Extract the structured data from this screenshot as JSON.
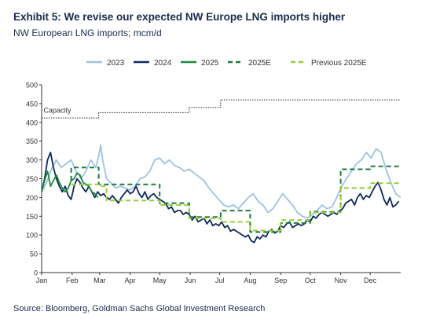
{
  "header": {
    "title": "Exhibit 5: We revise our expected NW Europe LNG imports higher",
    "subtitle": "NW European LNG imports; mcm/d"
  },
  "footer": {
    "source": "Source: Bloomberg, Goldman Sachs Global Investment Research"
  },
  "chart_data": {
    "type": "line",
    "ylim": [
      0,
      500
    ],
    "yticks": [
      0,
      50,
      100,
      150,
      200,
      250,
      300,
      350,
      400,
      450,
      500
    ],
    "xlim": [
      0,
      365
    ],
    "months": [
      "Jan",
      "Feb",
      "Mar",
      "Apr",
      "May",
      "Jun",
      "Jul",
      "Aug",
      "Sep",
      "Oct",
      "Nov",
      "Dec"
    ],
    "month_starts": [
      0,
      31,
      59,
      90,
      120,
      151,
      181,
      212,
      243,
      273,
      304,
      334
    ],
    "grid": false,
    "legend_position": "top",
    "annotations": [
      {
        "text": "Capacity"
      }
    ],
    "capacity": {
      "label": "Capacity",
      "color": "#222222",
      "points": [
        [
          0,
          412
        ],
        [
          58,
          412
        ],
        [
          58,
          426
        ],
        [
          150,
          426
        ],
        [
          150,
          440
        ],
        [
          182,
          440
        ],
        [
          182,
          460
        ],
        [
          365,
          460
        ]
      ]
    },
    "series": [
      {
        "name": "2023",
        "color": "#9cc3e6",
        "style": "solid",
        "points": [
          [
            0,
            215
          ],
          [
            5,
            240
          ],
          [
            10,
            275
          ],
          [
            15,
            300
          ],
          [
            20,
            280
          ],
          [
            25,
            290
          ],
          [
            30,
            300
          ],
          [
            35,
            270
          ],
          [
            40,
            250
          ],
          [
            45,
            270
          ],
          [
            50,
            300
          ],
          [
            55,
            280
          ],
          [
            58,
            310
          ],
          [
            60,
            340
          ],
          [
            62,
            300
          ],
          [
            66,
            250
          ],
          [
            70,
            240
          ],
          [
            75,
            225
          ],
          [
            80,
            230
          ],
          [
            85,
            225
          ],
          [
            90,
            220
          ],
          [
            95,
            230
          ],
          [
            100,
            250
          ],
          [
            105,
            255
          ],
          [
            110,
            270
          ],
          [
            115,
            300
          ],
          [
            120,
            305
          ],
          [
            125,
            290
          ],
          [
            130,
            300
          ],
          [
            135,
            285
          ],
          [
            140,
            280
          ],
          [
            145,
            270
          ],
          [
            150,
            275
          ],
          [
            155,
            265
          ],
          [
            160,
            255
          ],
          [
            165,
            245
          ],
          [
            170,
            225
          ],
          [
            175,
            210
          ],
          [
            180,
            195
          ],
          [
            185,
            180
          ],
          [
            190,
            175
          ],
          [
            195,
            180
          ],
          [
            200,
            170
          ],
          [
            205,
            185
          ],
          [
            210,
            200
          ],
          [
            215,
            210
          ],
          [
            220,
            190
          ],
          [
            225,
            180
          ],
          [
            230,
            160
          ],
          [
            235,
            170
          ],
          [
            240,
            190
          ],
          [
            245,
            210
          ],
          [
            250,
            195
          ],
          [
            255,
            180
          ],
          [
            260,
            160
          ],
          [
            265,
            150
          ],
          [
            270,
            145
          ],
          [
            275,
            155
          ],
          [
            280,
            165
          ],
          [
            285,
            180
          ],
          [
            290,
            170
          ],
          [
            295,
            175
          ],
          [
            300,
            200
          ],
          [
            305,
            230
          ],
          [
            310,
            250
          ],
          [
            315,
            270
          ],
          [
            320,
            290
          ],
          [
            325,
            300
          ],
          [
            330,
            320
          ],
          [
            335,
            305
          ],
          [
            340,
            330
          ],
          [
            345,
            320
          ],
          [
            350,
            275
          ],
          [
            355,
            240
          ],
          [
            360,
            210
          ],
          [
            365,
            200
          ]
        ]
      },
      {
        "name": "2024",
        "color": "#0c2a5b",
        "style": "solid",
        "points": [
          [
            0,
            215
          ],
          [
            3,
            250
          ],
          [
            6,
            300
          ],
          [
            9,
            320
          ],
          [
            12,
            280
          ],
          [
            15,
            250
          ],
          [
            18,
            230
          ],
          [
            21,
            215
          ],
          [
            24,
            230
          ],
          [
            27,
            205
          ],
          [
            30,
            195
          ],
          [
            33,
            230
          ],
          [
            36,
            250
          ],
          [
            39,
            240
          ],
          [
            42,
            225
          ],
          [
            45,
            215
          ],
          [
            48,
            230
          ],
          [
            51,
            215
          ],
          [
            54,
            200
          ],
          [
            57,
            215
          ],
          [
            60,
            205
          ],
          [
            63,
            210
          ],
          [
            66,
            200
          ],
          [
            69,
            195
          ],
          [
            72,
            205
          ],
          [
            75,
            195
          ],
          [
            78,
            185
          ],
          [
            81,
            200
          ],
          [
            84,
            210
          ],
          [
            87,
            220
          ],
          [
            90,
            210
          ],
          [
            93,
            215
          ],
          [
            96,
            230
          ],
          [
            99,
            210
          ],
          [
            102,
            200
          ],
          [
            105,
            215
          ],
          [
            108,
            195
          ],
          [
            111,
            205
          ],
          [
            114,
            210
          ],
          [
            117,
            200
          ],
          [
            120,
            195
          ],
          [
            123,
            190
          ],
          [
            126,
            185
          ],
          [
            129,
            170
          ],
          [
            132,
            175
          ],
          [
            135,
            160
          ],
          [
            138,
            165
          ],
          [
            141,
            165
          ],
          [
            144,
            155
          ],
          [
            147,
            160
          ],
          [
            150,
            155
          ],
          [
            153,
            140
          ],
          [
            156,
            150
          ],
          [
            159,
            135
          ],
          [
            162,
            140
          ],
          [
            165,
            145
          ],
          [
            168,
            130
          ],
          [
            171,
            140
          ],
          [
            174,
            125
          ],
          [
            177,
            130
          ],
          [
            180,
            125
          ],
          [
            183,
            135
          ],
          [
            186,
            120
          ],
          [
            189,
            125
          ],
          [
            192,
            110
          ],
          [
            195,
            115
          ],
          [
            198,
            110
          ],
          [
            201,
            105
          ],
          [
            204,
            100
          ],
          [
            207,
            95
          ],
          [
            210,
            100
          ],
          [
            213,
            85
          ],
          [
            216,
            80
          ],
          [
            219,
            95
          ],
          [
            222,
            90
          ],
          [
            225,
            100
          ],
          [
            228,
            95
          ],
          [
            231,
            110
          ],
          [
            234,
            115
          ],
          [
            237,
            105
          ],
          [
            240,
            110
          ],
          [
            243,
            125
          ],
          [
            246,
            120
          ],
          [
            249,
            130
          ],
          [
            252,
            135
          ],
          [
            255,
            120
          ],
          [
            258,
            125
          ],
          [
            261,
            130
          ],
          [
            264,
            125
          ],
          [
            267,
            130
          ],
          [
            270,
            140
          ],
          [
            273,
            135
          ],
          [
            276,
            150
          ],
          [
            279,
            145
          ],
          [
            282,
            155
          ],
          [
            285,
            160
          ],
          [
            288,
            155
          ],
          [
            291,
            150
          ],
          [
            294,
            155
          ],
          [
            297,
            160
          ],
          [
            300,
            155
          ],
          [
            303,
            165
          ],
          [
            306,
            170
          ],
          [
            309,
            185
          ],
          [
            312,
            190
          ],
          [
            315,
            195
          ],
          [
            318,
            180
          ],
          [
            321,
            200
          ],
          [
            324,
            210
          ],
          [
            327,
            195
          ],
          [
            330,
            205
          ],
          [
            333,
            200
          ],
          [
            336,
            215
          ],
          [
            339,
            230
          ],
          [
            342,
            240
          ],
          [
            345,
            220
          ],
          [
            348,
            195
          ],
          [
            351,
            180
          ],
          [
            354,
            200
          ],
          [
            357,
            175
          ],
          [
            360,
            180
          ],
          [
            363,
            190
          ]
        ]
      },
      {
        "name": "2025",
        "color": "#1b8a3c",
        "style": "solid",
        "points": [
          [
            0,
            215
          ],
          [
            3,
            245
          ],
          [
            6,
            270
          ],
          [
            9,
            230
          ],
          [
            12,
            245
          ],
          [
            15,
            260
          ],
          [
            18,
            240
          ],
          [
            21,
            225
          ],
          [
            24,
            215
          ],
          [
            27,
            225
          ],
          [
            30,
            245
          ],
          [
            33,
            250
          ],
          [
            36,
            265
          ],
          [
            39,
            260
          ],
          [
            42,
            240
          ],
          [
            45,
            235
          ],
          [
            48,
            230
          ],
          [
            51,
            215
          ],
          [
            54,
            210
          ],
          [
            57,
            200
          ]
        ]
      },
      {
        "name": "2025E",
        "color": "#1e7a3a",
        "style": "dashed",
        "points": [
          [
            30,
            245
          ],
          [
            30,
            280
          ],
          [
            58,
            280
          ],
          [
            58,
            235
          ],
          [
            120,
            235
          ],
          [
            120,
            185
          ],
          [
            150,
            185
          ],
          [
            150,
            148
          ],
          [
            182,
            148
          ],
          [
            182,
            165
          ],
          [
            212,
            165
          ],
          [
            212,
            108
          ],
          [
            243,
            108
          ],
          [
            243,
            132
          ],
          [
            273,
            132
          ],
          [
            273,
            162
          ],
          [
            304,
            162
          ],
          [
            304,
            275
          ],
          [
            334,
            275
          ],
          [
            334,
            283
          ],
          [
            365,
            283
          ]
        ]
      },
      {
        "name": "Previous 2025E",
        "color": "#9ccc3c",
        "style": "dashed",
        "points": [
          [
            30,
            235
          ],
          [
            58,
            235
          ],
          [
            58,
            230
          ],
          [
            66,
            230
          ],
          [
            66,
            192
          ],
          [
            120,
            192
          ],
          [
            120,
            180
          ],
          [
            150,
            180
          ],
          [
            150,
            145
          ],
          [
            182,
            145
          ],
          [
            182,
            135
          ],
          [
            212,
            135
          ],
          [
            212,
            112
          ],
          [
            243,
            112
          ],
          [
            243,
            140
          ],
          [
            273,
            140
          ],
          [
            273,
            160
          ],
          [
            304,
            160
          ],
          [
            304,
            225
          ],
          [
            334,
            225
          ],
          [
            334,
            238
          ],
          [
            365,
            238
          ]
        ]
      }
    ]
  }
}
